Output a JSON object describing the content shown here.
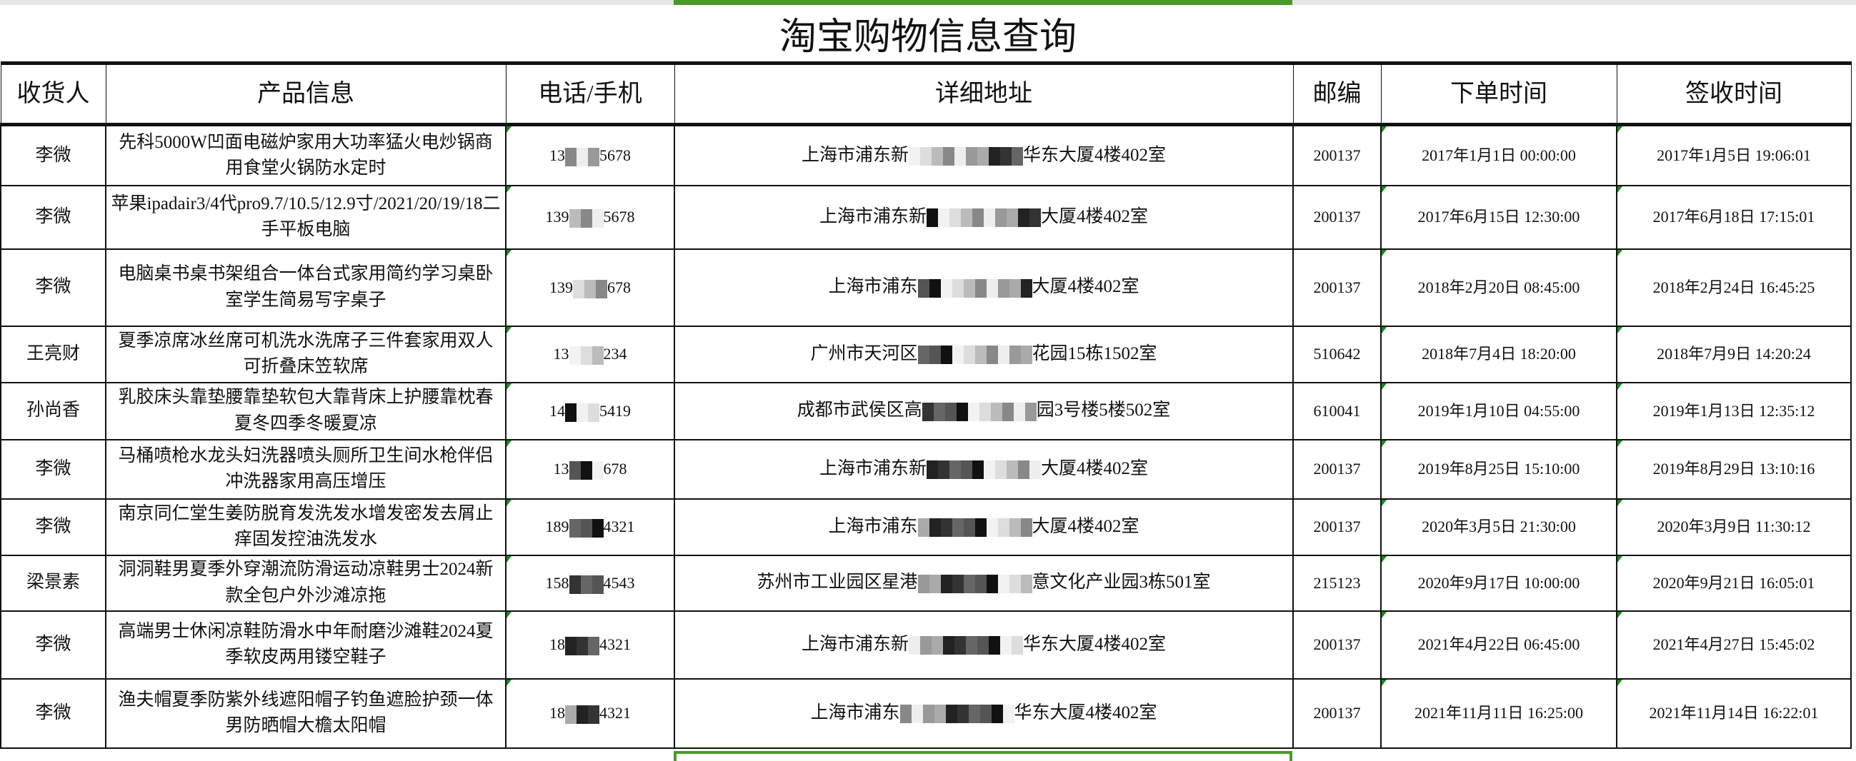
{
  "sheet": {
    "title": "淘宝购物信息查询",
    "headers": [
      "收货人",
      "产品信息",
      "电话/手机",
      "详细地址",
      "邮编",
      "下单时间",
      "签收时间"
    ],
    "accent_color": "#4a9a2a",
    "rows": [
      {
        "name": "李微",
        "product": "先科5000W凹面电磁炉家用大功率猛火电炒锅商用食堂火锅防水定时",
        "phone_start": "13",
        "phone_end": "5678",
        "addr_start": "上海市浦东新",
        "addr_end": "华东大厦4楼402室",
        "zip": "200137",
        "order_time": "2017年1月1日 00:00:00",
        "sign_time": "2017年1月5日 19:06:01"
      },
      {
        "name": "李微",
        "product": "苹果ipadair3/4代pro9.7/10.5/12.9寸/2021/20/19/18二手平板电脑",
        "phone_start": "139",
        "phone_end": "5678",
        "addr_start": "上海市浦东新",
        "addr_end": "大厦4楼402室",
        "zip": "200137",
        "order_time": "2017年6月15日 12:30:00",
        "sign_time": "2017年6月18日 17:15:01"
      },
      {
        "name": "李微",
        "product": "电脑桌书桌书架组合一体台式家用简约学习桌卧室学生简易写字桌子",
        "phone_start": "139",
        "phone_end": "678",
        "addr_start": "上海市浦东",
        "addr_end": "大厦4楼402室",
        "zip": "200137",
        "order_time": "2018年2月20日 08:45:00",
        "sign_time": "2018年2月24日 16:45:25"
      },
      {
        "name": "王亮财",
        "product": "夏季凉席冰丝席可机洗水洗席子三件套家用双人可折叠床笠软席",
        "phone_start": "13",
        "phone_end": "234",
        "addr_start": "广州市天河区",
        "addr_end": "花园15栋1502室",
        "zip": "510642",
        "order_time": "2018年7月4日 18:20:00",
        "sign_time": "2018年7月9日 14:20:24"
      },
      {
        "name": "孙尚香",
        "product": "乳胶床头靠垫腰靠垫软包大靠背床上护腰靠枕春夏冬四季冬暖夏凉",
        "phone_start": "14",
        "phone_end": "5419",
        "addr_start": "成都市武侯区高",
        "addr_end": "园3号楼5楼502室",
        "zip": "610041",
        "order_time": "2019年1月10日 04:55:00",
        "sign_time": "2019年1月13日 12:35:12"
      },
      {
        "name": "李微",
        "product": "马桶喷枪水龙头妇洗器喷头厕所卫生间水枪伴侣冲洗器家用高压增压",
        "phone_start": "13",
        "phone_end": "678",
        "addr_start": "上海市浦东新",
        "addr_end": "大厦4楼402室",
        "zip": "200137",
        "order_time": "2019年8月25日 15:10:00",
        "sign_time": "2019年8月29日 13:10:16"
      },
      {
        "name": "李微",
        "product": "南京同仁堂生姜防脱育发洗发水增发密发去屑止痒固发控油洗发水",
        "phone_start": "189",
        "phone_end": "4321",
        "addr_start": "上海市浦东",
        "addr_end": "大厦4楼402室",
        "zip": "200137",
        "order_time": "2020年3月5日 21:30:00",
        "sign_time": "2020年3月9日 11:30:12"
      },
      {
        "name": "梁景素",
        "product": "洞洞鞋男夏季外穿潮流防滑运动凉鞋男士2024新款全包户外沙滩凉拖",
        "phone_start": "158",
        "phone_end": "4543",
        "addr_start": "苏州市工业园区星港",
        "addr_end": "意文化产业园3栋501室",
        "zip": "215123",
        "order_time": "2020年9月17日 10:00:00",
        "sign_time": "2020年9月21日 16:05:01"
      },
      {
        "name": "李微",
        "product": "高端男士休闲凉鞋防滑水中年耐磨沙滩鞋2024夏季软皮两用镂空鞋子",
        "phone_start": "18",
        "phone_end": "4321",
        "addr_start": "上海市浦东新",
        "addr_end": "华东大厦4楼402室",
        "zip": "200137",
        "order_time": "2021年4月22日 06:45:00",
        "sign_time": "2021年4月27日 15:45:02"
      },
      {
        "name": "李微",
        "product": "渔夫帽夏季防紫外线遮阳帽子钓鱼遮脸护颈一体男防晒帽大檐太阳帽",
        "phone_start": "18",
        "phone_end": "4321",
        "addr_start": "上海市浦东",
        "addr_end": "华东大厦4楼402室",
        "zip": "200137",
        "order_time": "2021年11月11日 16:25:00",
        "sign_time": "2021年11月14日 16:22:01"
      }
    ]
  }
}
